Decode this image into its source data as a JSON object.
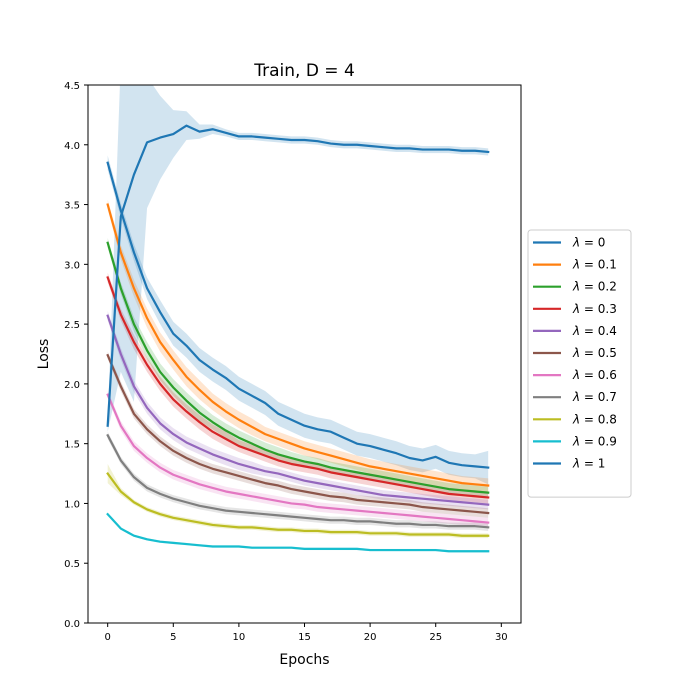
{
  "chart_data": {
    "type": "line",
    "title": "Train, D = 4",
    "xlabel": "Epochs",
    "ylabel": "Loss",
    "xlim": [
      -1.5,
      31.5
    ],
    "ylim": [
      0,
      4.5
    ],
    "xticks": [
      0,
      5,
      10,
      15,
      20,
      25,
      30
    ],
    "xtick_labels": [
      "0",
      "5",
      "10",
      "15",
      "20",
      "25",
      "30"
    ],
    "yticks": [
      0,
      0.5,
      1.0,
      1.5,
      2.0,
      2.5,
      3.0,
      3.5,
      4.0,
      4.5
    ],
    "ytick_labels": [
      "0.0",
      "0.5",
      "1.0",
      "1.5",
      "2.0",
      "2.5",
      "3.0",
      "3.5",
      "4.0",
      "4.5"
    ],
    "grid": false,
    "legend_position": "outside-right",
    "series": [
      {
        "name": "λ = 0",
        "label_prefix": "λ",
        "label_value": "= 0",
        "color": "#1f77b4",
        "x": [
          0,
          1,
          2,
          3,
          4,
          5,
          6,
          7,
          8,
          9,
          10,
          11,
          12,
          13,
          14,
          15,
          16,
          17,
          18,
          19,
          20,
          21,
          22,
          23,
          24,
          25,
          26,
          27,
          28,
          29
        ],
        "values": [
          3.85,
          3.45,
          3.1,
          2.8,
          2.6,
          2.42,
          2.32,
          2.2,
          2.12,
          2.05,
          1.96,
          1.9,
          1.84,
          1.75,
          1.7,
          1.65,
          1.62,
          1.6,
          1.55,
          1.5,
          1.48,
          1.45,
          1.42,
          1.38,
          1.36,
          1.39,
          1.34,
          1.32,
          1.31,
          1.3
        ],
        "band": [
          0.06,
          0.06,
          0.07,
          0.09,
          0.1,
          0.1,
          0.1,
          0.1,
          0.1,
          0.1,
          0.1,
          0.1,
          0.1,
          0.1,
          0.1,
          0.1,
          0.1,
          0.1,
          0.1,
          0.1,
          0.1,
          0.1,
          0.1,
          0.1,
          0.1,
          0.1,
          0.1,
          0.1,
          0.1,
          0.14
        ]
      },
      {
        "name": "λ = 0.1",
        "label_prefix": "λ",
        "label_value": "= 0.1",
        "color": "#ff7f0e",
        "x": [
          0,
          1,
          2,
          3,
          4,
          5,
          6,
          7,
          8,
          9,
          10,
          11,
          12,
          13,
          14,
          15,
          16,
          17,
          18,
          19,
          20,
          21,
          22,
          23,
          24,
          25,
          26,
          27,
          28,
          29
        ],
        "values": [
          3.5,
          3.1,
          2.8,
          2.55,
          2.35,
          2.2,
          2.06,
          1.95,
          1.85,
          1.77,
          1.7,
          1.64,
          1.58,
          1.54,
          1.5,
          1.46,
          1.43,
          1.4,
          1.37,
          1.34,
          1.31,
          1.29,
          1.27,
          1.25,
          1.23,
          1.21,
          1.19,
          1.17,
          1.16,
          1.15
        ],
        "band": [
          0.04,
          0.06,
          0.07,
          0.08,
          0.08,
          0.08,
          0.08,
          0.08,
          0.07,
          0.07,
          0.07,
          0.07,
          0.06,
          0.06,
          0.06,
          0.06,
          0.06,
          0.06,
          0.06,
          0.06,
          0.06,
          0.06,
          0.06,
          0.06,
          0.06,
          0.06,
          0.06,
          0.06,
          0.06,
          0.06
        ]
      },
      {
        "name": "λ = 0.2",
        "label_prefix": "λ",
        "label_value": "= 0.2",
        "color": "#2ca02c",
        "x": [
          0,
          1,
          2,
          3,
          4,
          5,
          6,
          7,
          8,
          9,
          10,
          11,
          12,
          13,
          14,
          15,
          16,
          17,
          18,
          19,
          20,
          21,
          22,
          23,
          24,
          25,
          26,
          27,
          28,
          29
        ],
        "values": [
          3.18,
          2.8,
          2.5,
          2.28,
          2.1,
          1.97,
          1.86,
          1.76,
          1.68,
          1.61,
          1.55,
          1.5,
          1.45,
          1.41,
          1.38,
          1.35,
          1.33,
          1.3,
          1.28,
          1.26,
          1.24,
          1.22,
          1.2,
          1.18,
          1.16,
          1.14,
          1.12,
          1.11,
          1.1,
          1.09
        ],
        "band": [
          0.04,
          0.05,
          0.06,
          0.07,
          0.07,
          0.07,
          0.07,
          0.07,
          0.06,
          0.06,
          0.06,
          0.06,
          0.06,
          0.06,
          0.05,
          0.05,
          0.05,
          0.05,
          0.05,
          0.05,
          0.05,
          0.05,
          0.05,
          0.05,
          0.05,
          0.05,
          0.05,
          0.05,
          0.05,
          0.05
        ]
      },
      {
        "name": "λ = 0.3",
        "label_prefix": "λ",
        "label_value": "= 0.3",
        "color": "#d62728",
        "x": [
          0,
          1,
          2,
          3,
          4,
          5,
          6,
          7,
          8,
          9,
          10,
          11,
          12,
          13,
          14,
          15,
          16,
          17,
          18,
          19,
          20,
          21,
          22,
          23,
          24,
          25,
          26,
          27,
          28,
          29
        ],
        "values": [
          2.89,
          2.58,
          2.35,
          2.16,
          2.0,
          1.87,
          1.77,
          1.68,
          1.6,
          1.54,
          1.48,
          1.44,
          1.4,
          1.36,
          1.33,
          1.31,
          1.29,
          1.26,
          1.24,
          1.22,
          1.2,
          1.18,
          1.16,
          1.14,
          1.12,
          1.1,
          1.08,
          1.07,
          1.06,
          1.05
        ],
        "band": [
          0.04,
          0.05,
          0.06,
          0.06,
          0.06,
          0.06,
          0.06,
          0.06,
          0.06,
          0.06,
          0.05,
          0.05,
          0.05,
          0.05,
          0.05,
          0.05,
          0.05,
          0.05,
          0.05,
          0.05,
          0.05,
          0.05,
          0.05,
          0.05,
          0.05,
          0.05,
          0.05,
          0.05,
          0.05,
          0.05
        ]
      },
      {
        "name": "λ = 0.4",
        "label_prefix": "λ",
        "label_value": "= 0.4",
        "color": "#9467bd",
        "x": [
          0,
          1,
          2,
          3,
          4,
          5,
          6,
          7,
          8,
          9,
          10,
          11,
          12,
          13,
          14,
          15,
          16,
          17,
          18,
          19,
          20,
          21,
          22,
          23,
          24,
          25,
          26,
          27,
          28,
          29
        ],
        "values": [
          2.57,
          2.25,
          1.98,
          1.8,
          1.67,
          1.58,
          1.51,
          1.46,
          1.41,
          1.37,
          1.33,
          1.3,
          1.27,
          1.25,
          1.22,
          1.19,
          1.17,
          1.15,
          1.13,
          1.11,
          1.09,
          1.07,
          1.06,
          1.05,
          1.04,
          1.03,
          1.02,
          1.01,
          1.0,
          0.99
        ],
        "band": [
          0.04,
          0.05,
          0.05,
          0.05,
          0.05,
          0.05,
          0.05,
          0.05,
          0.05,
          0.05,
          0.05,
          0.05,
          0.04,
          0.04,
          0.04,
          0.04,
          0.04,
          0.04,
          0.04,
          0.04,
          0.04,
          0.04,
          0.04,
          0.04,
          0.04,
          0.04,
          0.04,
          0.04,
          0.04,
          0.04
        ]
      },
      {
        "name": "λ = 0.5",
        "label_prefix": "λ",
        "label_value": "= 0.5",
        "color": "#8c564b",
        "x": [
          0,
          1,
          2,
          3,
          4,
          5,
          6,
          7,
          8,
          9,
          10,
          11,
          12,
          13,
          14,
          15,
          16,
          17,
          18,
          19,
          20,
          21,
          22,
          23,
          24,
          25,
          26,
          27,
          28,
          29
        ],
        "values": [
          2.24,
          1.98,
          1.75,
          1.62,
          1.52,
          1.44,
          1.38,
          1.33,
          1.29,
          1.26,
          1.23,
          1.2,
          1.17,
          1.15,
          1.12,
          1.1,
          1.08,
          1.06,
          1.05,
          1.03,
          1.02,
          1.01,
          1.0,
          0.99,
          0.97,
          0.96,
          0.95,
          0.94,
          0.93,
          0.92
        ],
        "band": [
          0.03,
          0.04,
          0.04,
          0.04,
          0.04,
          0.04,
          0.04,
          0.04,
          0.04,
          0.04,
          0.04,
          0.04,
          0.04,
          0.04,
          0.04,
          0.04,
          0.04,
          0.04,
          0.04,
          0.04,
          0.04,
          0.04,
          0.04,
          0.04,
          0.04,
          0.04,
          0.04,
          0.04,
          0.04,
          0.04
        ]
      },
      {
        "name": "λ = 0.6",
        "label_prefix": "λ",
        "label_value": "= 0.6",
        "color": "#e377c2",
        "x": [
          0,
          1,
          2,
          3,
          4,
          5,
          6,
          7,
          8,
          9,
          10,
          11,
          12,
          13,
          14,
          15,
          16,
          17,
          18,
          19,
          20,
          21,
          22,
          23,
          24,
          25,
          26,
          27,
          28,
          29
        ],
        "values": [
          1.91,
          1.65,
          1.48,
          1.38,
          1.3,
          1.24,
          1.2,
          1.16,
          1.13,
          1.1,
          1.08,
          1.06,
          1.04,
          1.02,
          1.0,
          0.99,
          0.97,
          0.96,
          0.95,
          0.94,
          0.93,
          0.92,
          0.91,
          0.9,
          0.89,
          0.88,
          0.87,
          0.86,
          0.85,
          0.84
        ],
        "band": [
          0.03,
          0.04,
          0.04,
          0.04,
          0.04,
          0.04,
          0.04,
          0.04,
          0.04,
          0.04,
          0.04,
          0.04,
          0.04,
          0.04,
          0.04,
          0.04,
          0.04,
          0.04,
          0.04,
          0.04,
          0.04,
          0.04,
          0.04,
          0.04,
          0.04,
          0.04,
          0.04,
          0.04,
          0.04,
          0.04
        ]
      },
      {
        "name": "λ = 0.7",
        "label_prefix": "λ",
        "label_value": "= 0.7",
        "color": "#7f7f7f",
        "x": [
          0,
          1,
          2,
          3,
          4,
          5,
          6,
          7,
          8,
          9,
          10,
          11,
          12,
          13,
          14,
          15,
          16,
          17,
          18,
          19,
          20,
          21,
          22,
          23,
          24,
          25,
          26,
          27,
          28,
          29
        ],
        "values": [
          1.57,
          1.36,
          1.22,
          1.13,
          1.08,
          1.04,
          1.01,
          0.98,
          0.96,
          0.94,
          0.93,
          0.92,
          0.91,
          0.9,
          0.89,
          0.88,
          0.87,
          0.86,
          0.86,
          0.85,
          0.85,
          0.84,
          0.83,
          0.83,
          0.82,
          0.82,
          0.81,
          0.81,
          0.81,
          0.8
        ],
        "band": [
          0.03,
          0.03,
          0.03,
          0.03,
          0.03,
          0.03,
          0.03,
          0.03,
          0.03,
          0.03,
          0.03,
          0.03,
          0.03,
          0.03,
          0.03,
          0.03,
          0.03,
          0.03,
          0.03,
          0.03,
          0.03,
          0.03,
          0.03,
          0.03,
          0.03,
          0.03,
          0.03,
          0.03,
          0.03,
          0.03
        ]
      },
      {
        "name": "λ = 0.8",
        "label_prefix": "λ",
        "label_value": "= 0.8",
        "color": "#bcbd22",
        "x": [
          0,
          1,
          2,
          3,
          4,
          5,
          6,
          7,
          8,
          9,
          10,
          11,
          12,
          13,
          14,
          15,
          16,
          17,
          18,
          19,
          20,
          21,
          22,
          23,
          24,
          25,
          26,
          27,
          28,
          29
        ],
        "values": [
          1.25,
          1.1,
          1.01,
          0.95,
          0.91,
          0.88,
          0.86,
          0.84,
          0.82,
          0.81,
          0.8,
          0.8,
          0.79,
          0.78,
          0.78,
          0.77,
          0.77,
          0.76,
          0.76,
          0.76,
          0.75,
          0.75,
          0.75,
          0.74,
          0.74,
          0.74,
          0.74,
          0.73,
          0.73,
          0.73
        ],
        "band": [
          0.08,
          0.03,
          0.02,
          0.02,
          0.02,
          0.02,
          0.02,
          0.02,
          0.02,
          0.02,
          0.02,
          0.02,
          0.02,
          0.02,
          0.02,
          0.02,
          0.02,
          0.02,
          0.02,
          0.02,
          0.02,
          0.02,
          0.02,
          0.02,
          0.02,
          0.02,
          0.02,
          0.02,
          0.02,
          0.02
        ]
      },
      {
        "name": "λ = 0.9",
        "label_prefix": "λ",
        "label_value": "= 0.9",
        "color": "#17becf",
        "x": [
          0,
          1,
          2,
          3,
          4,
          5,
          6,
          7,
          8,
          9,
          10,
          11,
          12,
          13,
          14,
          15,
          16,
          17,
          18,
          19,
          20,
          21,
          22,
          23,
          24,
          25,
          26,
          27,
          28,
          29
        ],
        "values": [
          0.91,
          0.79,
          0.73,
          0.7,
          0.68,
          0.67,
          0.66,
          0.65,
          0.64,
          0.64,
          0.64,
          0.63,
          0.63,
          0.63,
          0.63,
          0.62,
          0.62,
          0.62,
          0.62,
          0.62,
          0.61,
          0.61,
          0.61,
          0.61,
          0.61,
          0.61,
          0.6,
          0.6,
          0.6,
          0.6
        ],
        "band": [
          0.01,
          0.01,
          0.01,
          0.01,
          0.01,
          0.01,
          0.01,
          0.01,
          0.01,
          0.01,
          0.01,
          0.01,
          0.01,
          0.01,
          0.01,
          0.01,
          0.01,
          0.01,
          0.01,
          0.01,
          0.01,
          0.01,
          0.01,
          0.01,
          0.01,
          0.01,
          0.01,
          0.01,
          0.01,
          0.01
        ]
      },
      {
        "name": "λ = 1",
        "label_prefix": "λ",
        "label_value": "= 1",
        "color": "#1f77b4",
        "x": [
          0,
          1,
          2,
          3,
          4,
          5,
          6,
          7,
          8,
          9,
          10,
          11,
          12,
          13,
          14,
          15,
          16,
          17,
          18,
          19,
          20,
          21,
          22,
          23,
          24,
          25,
          26,
          27,
          28,
          29
        ],
        "values": [
          1.65,
          3.4,
          3.75,
          4.02,
          4.06,
          4.09,
          4.16,
          4.11,
          4.13,
          4.1,
          4.07,
          4.07,
          4.06,
          4.05,
          4.04,
          4.04,
          4.03,
          4.01,
          4.0,
          4.0,
          3.99,
          3.98,
          3.97,
          3.97,
          3.96,
          3.96,
          3.96,
          3.95,
          3.95,
          3.94
        ],
        "band": [
          0.05,
          1.3,
          1.9,
          0.55,
          0.35,
          0.2,
          0.12,
          0.06,
          0.04,
          0.03,
          0.03,
          0.03,
          0.03,
          0.03,
          0.03,
          0.03,
          0.03,
          0.03,
          0.03,
          0.03,
          0.03,
          0.03,
          0.03,
          0.03,
          0.03,
          0.03,
          0.03,
          0.03,
          0.03,
          0.03
        ]
      }
    ]
  }
}
